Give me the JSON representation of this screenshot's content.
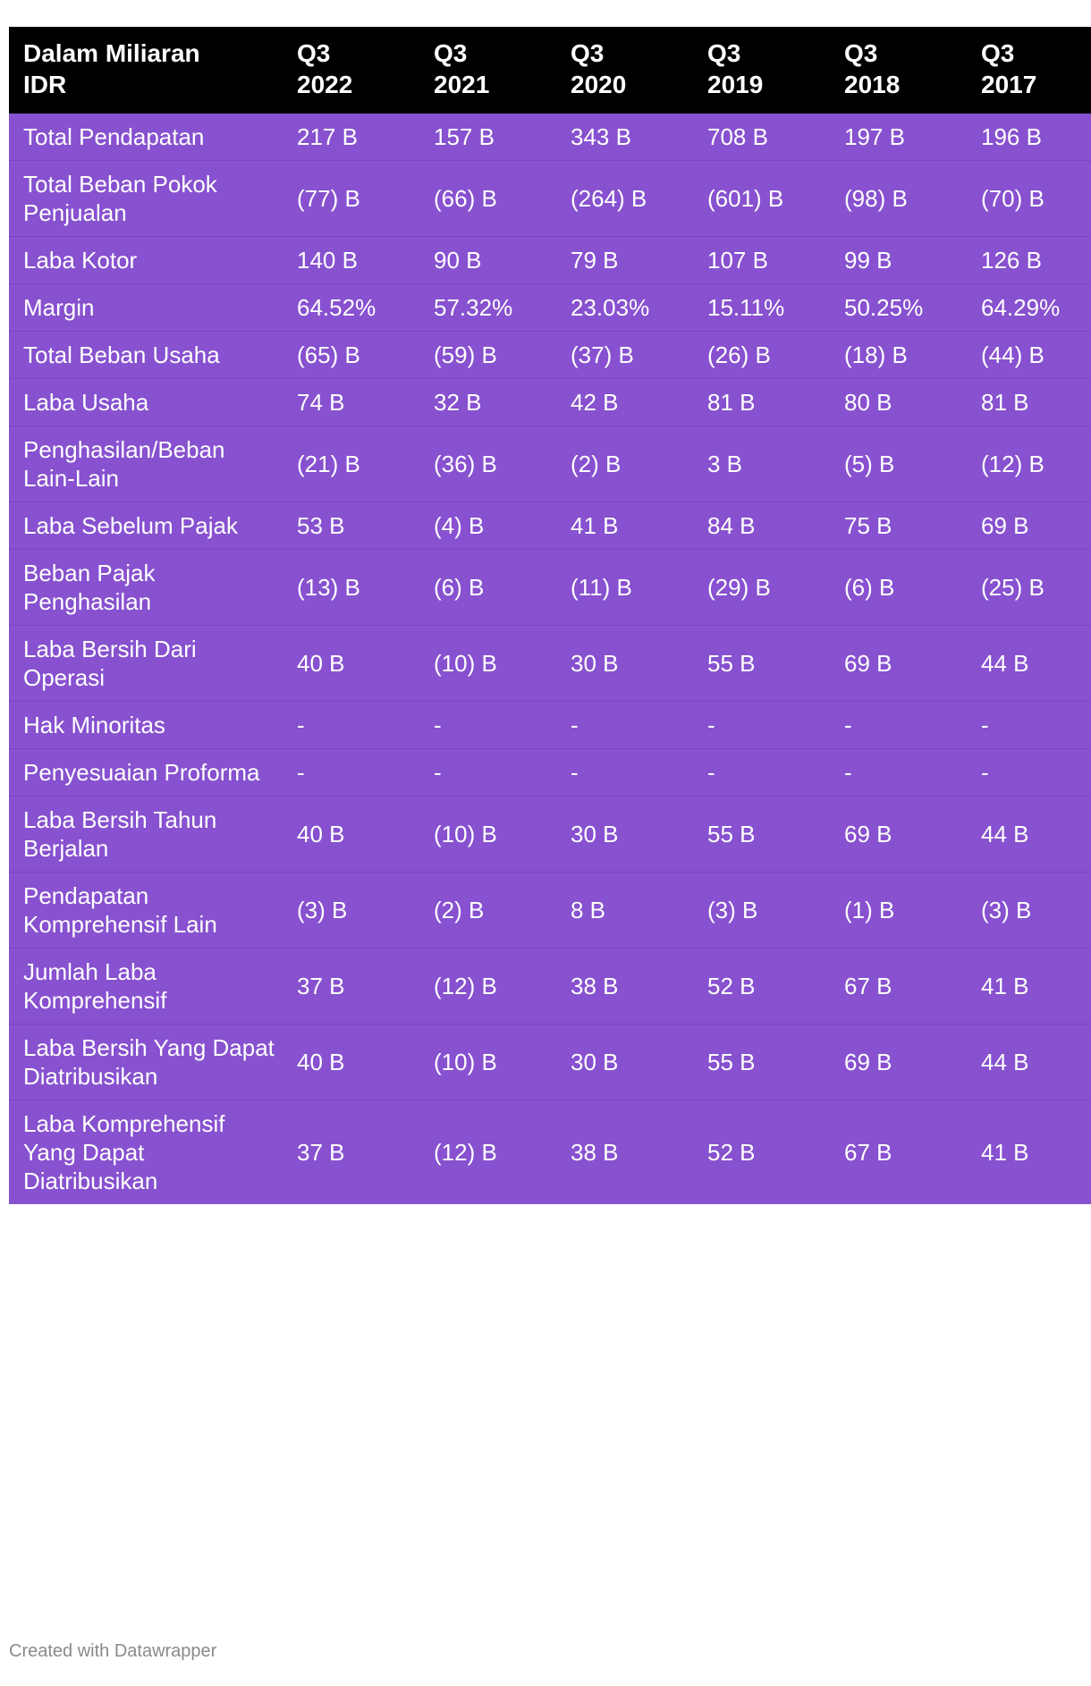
{
  "chart_data": {
    "type": "table",
    "columns": [
      "Dalam Miliaran IDR",
      "Q3 2022",
      "Q3 2021",
      "Q3 2020",
      "Q3 2019",
      "Q3 2018",
      "Q3 2017"
    ],
    "header_lines": [
      [
        "Dalam Miliaran",
        "IDR"
      ],
      [
        "Q3",
        "2022"
      ],
      [
        "Q3",
        "2021"
      ],
      [
        "Q3",
        "2020"
      ],
      [
        "Q3",
        "2019"
      ],
      [
        "Q3",
        "2018"
      ],
      [
        "Q3",
        "2017"
      ]
    ],
    "rows": [
      [
        "Total Pendapatan",
        "217 B",
        "157 B",
        "343 B",
        "708 B",
        "197 B",
        "196 B"
      ],
      [
        "Total Beban Pokok Penjualan",
        "(77) B",
        "(66) B",
        "(264) B",
        "(601) B",
        "(98) B",
        "(70) B"
      ],
      [
        "Laba Kotor",
        "140 B",
        "90 B",
        "79 B",
        "107 B",
        "99 B",
        "126 B"
      ],
      [
        "Margin",
        "64.52%",
        "57.32%",
        "23.03%",
        "15.11%",
        "50.25%",
        "64.29%"
      ],
      [
        "Total Beban Usaha",
        "(65) B",
        "(59) B",
        "(37) B",
        "(26) B",
        "(18) B",
        "(44) B"
      ],
      [
        "Laba Usaha",
        "74 B",
        "32 B",
        "42 B",
        "81 B",
        "80 B",
        "81 B"
      ],
      [
        "Penghasilan/Beban Lain-Lain",
        "(21) B",
        "(36) B",
        "(2) B",
        "3 B",
        "(5) B",
        "(12) B"
      ],
      [
        "Laba Sebelum Pajak",
        "53 B",
        "(4) B",
        "41 B",
        "84 B",
        "75 B",
        "69 B"
      ],
      [
        "Beban Pajak Penghasilan",
        "(13) B",
        "(6) B",
        "(11) B",
        "(29) B",
        "(6) B",
        "(25) B"
      ],
      [
        "Laba Bersih Dari Operasi",
        "40 B",
        "(10) B",
        "30 B",
        "55 B",
        "69 B",
        "44 B"
      ],
      [
        "Hak Minoritas",
        "-",
        "-",
        "-",
        "-",
        "-",
        "-"
      ],
      [
        "Penyesuaian Proforma",
        "-",
        "-",
        "-",
        "-",
        "-",
        "-"
      ],
      [
        "Laba Bersih Tahun Berjalan",
        "40 B",
        "(10) B",
        "30 B",
        "55 B",
        "69 B",
        "44 B"
      ],
      [
        "Pendapatan Komprehensif Lain",
        "(3) B",
        "(2) B",
        "8 B",
        "(3) B",
        "(1) B",
        "(3) B"
      ],
      [
        "Jumlah Laba Komprehensif",
        "37 B",
        "(12) B",
        "38 B",
        "52 B",
        "67 B",
        "41 B"
      ],
      [
        "Laba Bersih Yang Dapat Diatribusikan",
        "40 B",
        "(10) B",
        "30 B",
        "55 B",
        "69 B",
        "44 B"
      ],
      [
        "Laba Komprehensif Yang Dapat Diatribusikan",
        "37 B",
        "(12) B",
        "38 B",
        "52 B",
        "67 B",
        "41 B"
      ]
    ]
  },
  "footer": {
    "credit": "Created with Datawrapper"
  },
  "colors": {
    "header_bg": "#000000",
    "row_bg": "#8751cf",
    "text": "#ffffff"
  }
}
